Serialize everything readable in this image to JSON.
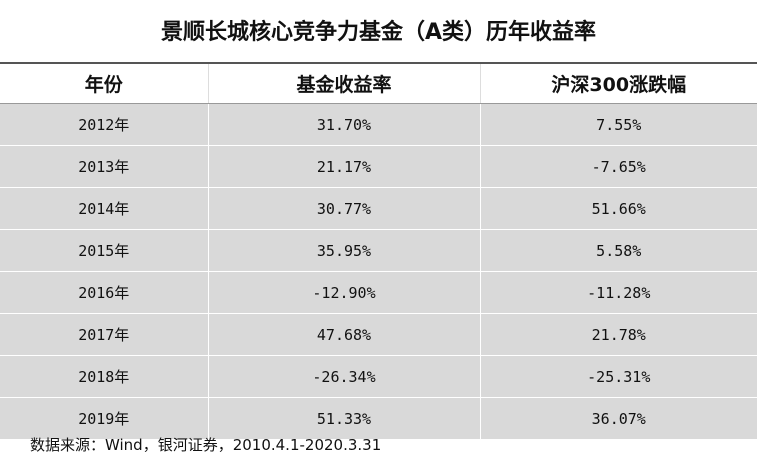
{
  "title": "景顺长城核心竞争力基金（A类）历年收益率",
  "table": {
    "header": [
      "年份",
      "基金收益率",
      "沪深300涨跌幅"
    ],
    "rows": [
      [
        "2012年",
        "31.70%",
        "7.55%"
      ],
      [
        "2013年",
        "21.17%",
        "-7.65%"
      ],
      [
        "2014年",
        "30.77%",
        "51.66%"
      ],
      [
        "2015年",
        "35.95%",
        "5.58%"
      ],
      [
        "2016年",
        "-12.90%",
        "-11.28%"
      ],
      [
        "2017年",
        "47.68%",
        "21.78%"
      ],
      [
        "2018年",
        "-26.34%",
        "-25.31%"
      ],
      [
        "2019年",
        "51.33%",
        "36.07%"
      ]
    ]
  },
  "note": "数据来源：Wind，银河证券，2010.4.1-2020.3.31"
}
